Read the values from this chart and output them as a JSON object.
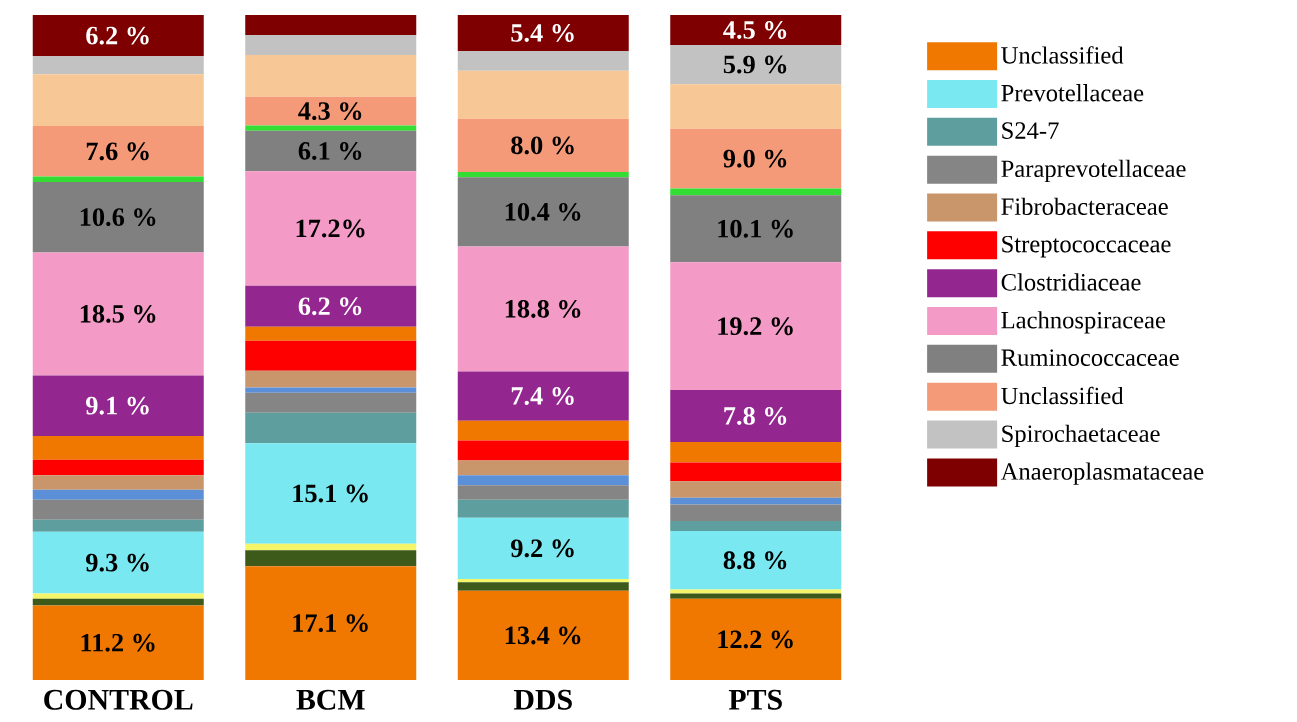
{
  "chart_data": {
    "type": "bar",
    "stacked": true,
    "legend": "right",
    "categories": [
      "CONTROL",
      "BCM",
      "DDS",
      "PTS"
    ],
    "series": [
      {
        "name": "Unclassified",
        "color": "#f07800",
        "values": [
          11.2,
          17.1,
          13.4,
          12.2
        ],
        "value_labels": [
          "11.2 %",
          "17.1 %",
          "13.4 %",
          "12.2 %"
        ]
      },
      {
        "color": "#3d5a1a",
        "values": [
          1.0,
          2.4,
          1.3,
          0.8
        ]
      },
      {
        "color": "#f5f56a",
        "values": [
          0.8,
          1.0,
          0.5,
          0.6
        ]
      },
      {
        "name": "Prevotellaceae",
        "color": "#7ae8f0",
        "values": [
          9.3,
          15.1,
          9.2,
          8.8
        ],
        "value_labels": [
          "9.3 %",
          "15.1 %",
          "9.2 %",
          "8.8 %"
        ]
      },
      {
        "name": "S24-7",
        "color": "#5e9e9e",
        "values": [
          1.8,
          4.6,
          2.7,
          1.5
        ],
        "value_labels": [
          null,
          null,
          null,
          null
        ]
      },
      {
        "name": "Paraprevotellaceae",
        "color": "#858585",
        "values": [
          3.0,
          3.0,
          2.2,
          2.5
        ]
      },
      {
        "color": "#5b8fd8",
        "values": [
          1.5,
          0.8,
          1.5,
          1.0
        ]
      },
      {
        "name": "Fibrobacteraceae",
        "color": "#c9956a",
        "values": [
          2.2,
          2.5,
          2.2,
          2.5
        ]
      },
      {
        "name": "Streptococcaceae",
        "color": "#ff0000",
        "values": [
          2.3,
          4.5,
          3.0,
          2.8
        ]
      },
      {
        "color": "#f07800",
        "values": [
          3.6,
          2.1,
          3.0,
          3.1
        ]
      },
      {
        "name": "Clostridiaceae",
        "color": "#93278f",
        "values": [
          9.1,
          6.2,
          7.4,
          7.8
        ],
        "value_labels": [
          "9.1 %",
          "6.2 %",
          "7.4 %",
          "7.8 %"
        ]
      },
      {
        "name": "Lachnospiraceae",
        "color": "#f39ac6",
        "values": [
          18.5,
          17.2,
          18.8,
          19.2
        ],
        "value_labels": [
          "18.5 %",
          "17.2%",
          "18.8 %",
          "19.2 %"
        ]
      },
      {
        "name": "Ruminococcaceae",
        "color": "#808080",
        "values": [
          10.6,
          6.1,
          10.4,
          10.1
        ],
        "value_labels": [
          "10.6 %",
          "6.1 %",
          "10.4 %",
          "10.1 %"
        ]
      },
      {
        "color": "#33dd33",
        "values": [
          0.8,
          0.8,
          0.8,
          1.0
        ]
      },
      {
        "name": "Unclassified",
        "color": "#f59a78",
        "values": [
          7.6,
          4.3,
          8.0,
          9.0
        ],
        "value_labels": [
          "7.6 %",
          "4.3 %",
          "8.0 %",
          "9.0 %"
        ]
      },
      {
        "color": "#f7c896",
        "values": [
          7.8,
          6.3,
          7.2,
          6.7
        ]
      },
      {
        "name": "Spirochaetaceae",
        "color": "#c2c2c2",
        "values": [
          2.7,
          3.0,
          3.0,
          5.9
        ],
        "value_labels": [
          null,
          null,
          null,
          "5.9 %"
        ]
      },
      {
        "name": "Anaeroplasmataceae",
        "color": "#7f0000",
        "values": [
          6.2,
          3.0,
          5.4,
          4.5
        ],
        "value_labels": [
          "6.2 %",
          null,
          "5.4 %",
          "4.5 %"
        ]
      }
    ]
  }
}
